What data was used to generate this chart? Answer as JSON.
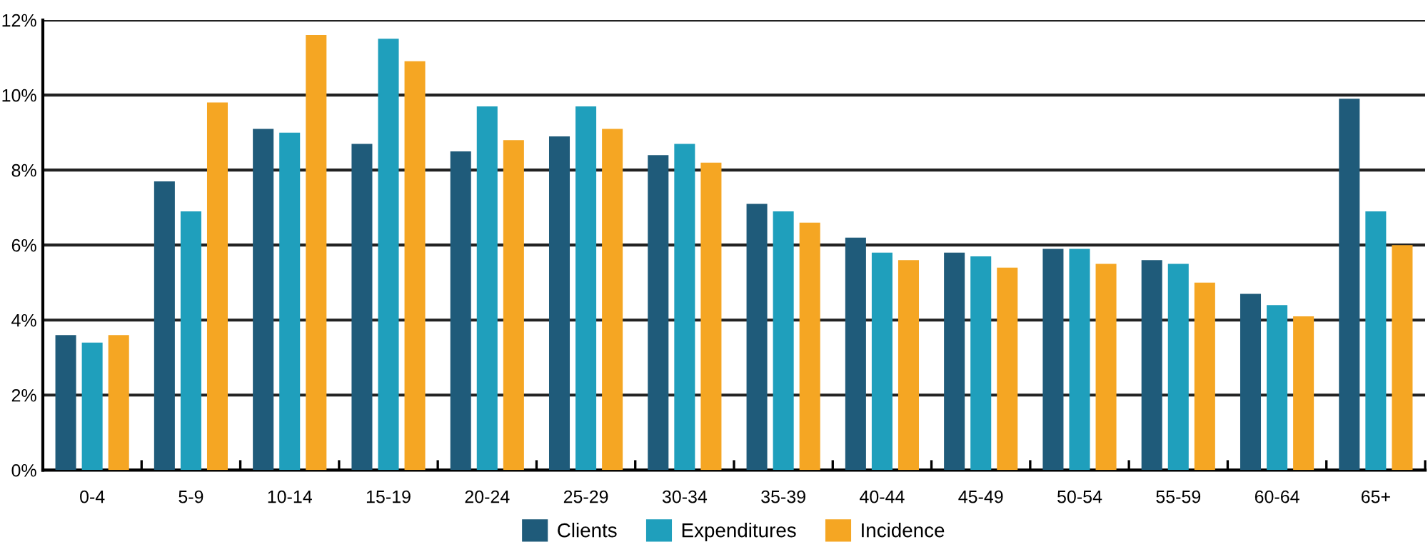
{
  "chart_data": {
    "type": "bar",
    "categories": [
      "0-4",
      "5-9",
      "10-14",
      "15-19",
      "20-24",
      "25-29",
      "30-34",
      "35-39",
      "40-44",
      "45-49",
      "50-54",
      "55-59",
      "60-64",
      "65+"
    ],
    "series": [
      {
        "name": "Clients",
        "color": "#1f5b7a",
        "values": [
          3.6,
          7.7,
          9.1,
          8.7,
          8.5,
          8.9,
          8.4,
          7.1,
          6.2,
          5.8,
          5.9,
          5.6,
          4.7,
          9.9
        ]
      },
      {
        "name": "Expenditures",
        "color": "#1f9fbc",
        "values": [
          3.4,
          6.9,
          9.0,
          11.5,
          9.7,
          9.7,
          8.7,
          6.9,
          5.8,
          5.7,
          5.9,
          5.5,
          4.4,
          6.9
        ]
      },
      {
        "name": "Incidence",
        "color": "#f5a623",
        "values": [
          3.6,
          9.8,
          11.6,
          10.9,
          8.8,
          9.1,
          8.2,
          6.6,
          5.6,
          5.4,
          5.5,
          5.0,
          4.1,
          6.0
        ]
      }
    ],
    "ylim": [
      0,
      12
    ],
    "yticks": [
      {
        "value": 0,
        "label": "0%"
      },
      {
        "value": 2,
        "label": "2%"
      },
      {
        "value": 4,
        "label": "4%"
      },
      {
        "value": 6,
        "label": "6%"
      },
      {
        "value": 8,
        "label": "8%"
      },
      {
        "value": 10,
        "label": "10%"
      },
      {
        "value": 12,
        "label": "12%"
      }
    ],
    "grid": "y",
    "legend": "bottom"
  }
}
